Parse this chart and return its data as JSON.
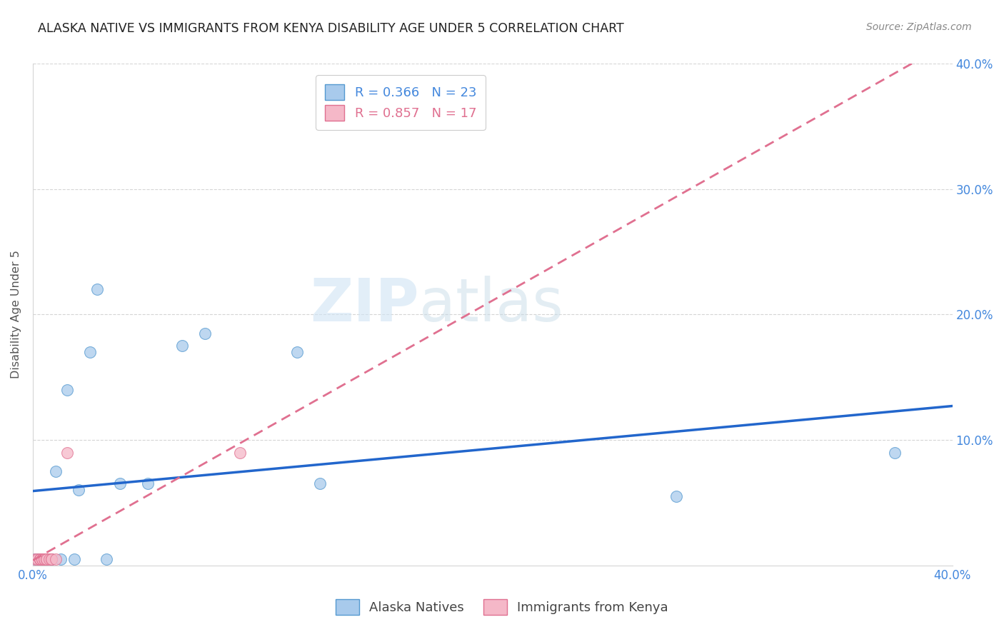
{
  "title": "ALASKA NATIVE VS IMMIGRANTS FROM KENYA DISABILITY AGE UNDER 5 CORRELATION CHART",
  "source": "Source: ZipAtlas.com",
  "ylabel": "Disability Age Under 5",
  "watermark_zip": "ZIP",
  "watermark_atlas": "atlas",
  "legend_r1": "R = 0.366   N = 23",
  "legend_r2": "R = 0.857   N = 17",
  "legend_label1": "Alaska Natives",
  "legend_label2": "Immigrants from Kenya",
  "alaska_x": [
    0.001,
    0.002,
    0.003,
    0.004,
    0.005,
    0.006,
    0.008,
    0.01,
    0.012,
    0.015,
    0.018,
    0.02,
    0.025,
    0.028,
    0.032,
    0.038,
    0.05,
    0.065,
    0.075,
    0.115,
    0.125,
    0.28,
    0.375
  ],
  "alaska_y": [
    0.005,
    0.005,
    0.005,
    0.005,
    0.005,
    0.005,
    0.005,
    0.075,
    0.005,
    0.14,
    0.005,
    0.06,
    0.17,
    0.22,
    0.005,
    0.065,
    0.065,
    0.175,
    0.185,
    0.17,
    0.065,
    0.055,
    0.09
  ],
  "kenya_x": [
    0.001,
    0.002,
    0.003,
    0.003,
    0.003,
    0.004,
    0.004,
    0.005,
    0.005,
    0.006,
    0.006,
    0.007,
    0.008,
    0.008,
    0.01,
    0.015,
    0.09
  ],
  "kenya_y": [
    0.005,
    0.005,
    0.005,
    0.005,
    0.005,
    0.005,
    0.005,
    0.005,
    0.005,
    0.005,
    0.005,
    0.005,
    0.005,
    0.005,
    0.005,
    0.09,
    0.09
  ],
  "xlim": [
    0.0,
    0.4
  ],
  "ylim": [
    0.0,
    0.4
  ],
  "blue_scatter_color": "#a8caec",
  "blue_scatter_edge": "#5599d0",
  "pink_scatter_color": "#f5b8c8",
  "pink_scatter_edge": "#e07090",
  "blue_line_color": "#2266cc",
  "pink_line_color": "#e07090",
  "grid_color": "#d5d5d5",
  "background_color": "#ffffff",
  "blue_text_color": "#4488dd",
  "pink_text_color": "#e07090"
}
